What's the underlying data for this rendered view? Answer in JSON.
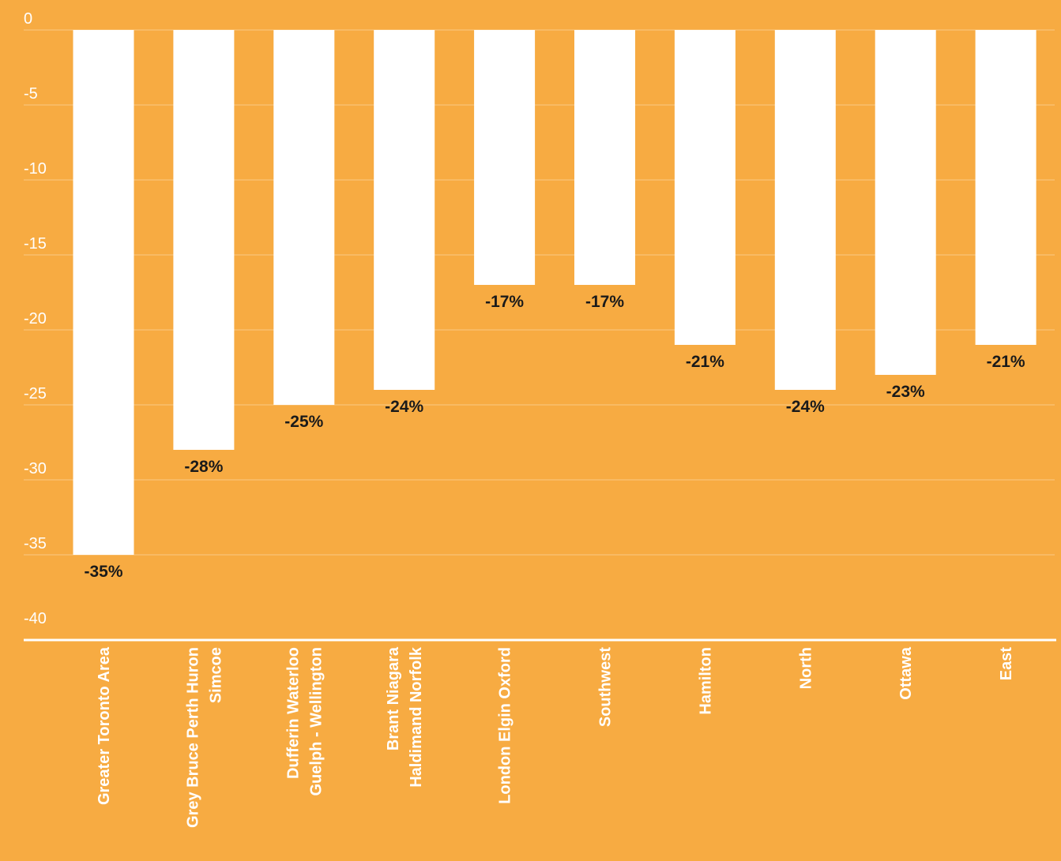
{
  "chart_data": {
    "type": "bar",
    "categories": [
      [
        "Greater Toronto Area"
      ],
      [
        "Grey Bruce Perth Huron",
        "Simcoe"
      ],
      [
        "Dufferin Waterloo",
        "Guelph - Wellington"
      ],
      [
        "Brant Niagara",
        "Haldimand Norfolk"
      ],
      [
        "London Elgin Oxford"
      ],
      [
        "Southwest"
      ],
      [
        "Hamilton"
      ],
      [
        "North"
      ],
      [
        "Ottawa"
      ],
      [
        "East"
      ]
    ],
    "values": [
      -35,
      -28,
      -25,
      -24,
      -17,
      -17,
      -21,
      -24,
      -23,
      -21
    ],
    "data_labels": [
      "-35%",
      "-28%",
      "-25%",
      "-24%",
      "-17%",
      "-17%",
      "-21%",
      "-24%",
      "-23%",
      "-21%"
    ],
    "y_ticks": [
      0,
      -5,
      -10,
      -15,
      -20,
      -25,
      -30,
      -35,
      -40
    ],
    "ylim": [
      -40,
      0
    ],
    "grid": true,
    "colors": {
      "background": "#F7AB42",
      "bar": "#FFFFFF",
      "label": "#1A1A1A"
    }
  }
}
